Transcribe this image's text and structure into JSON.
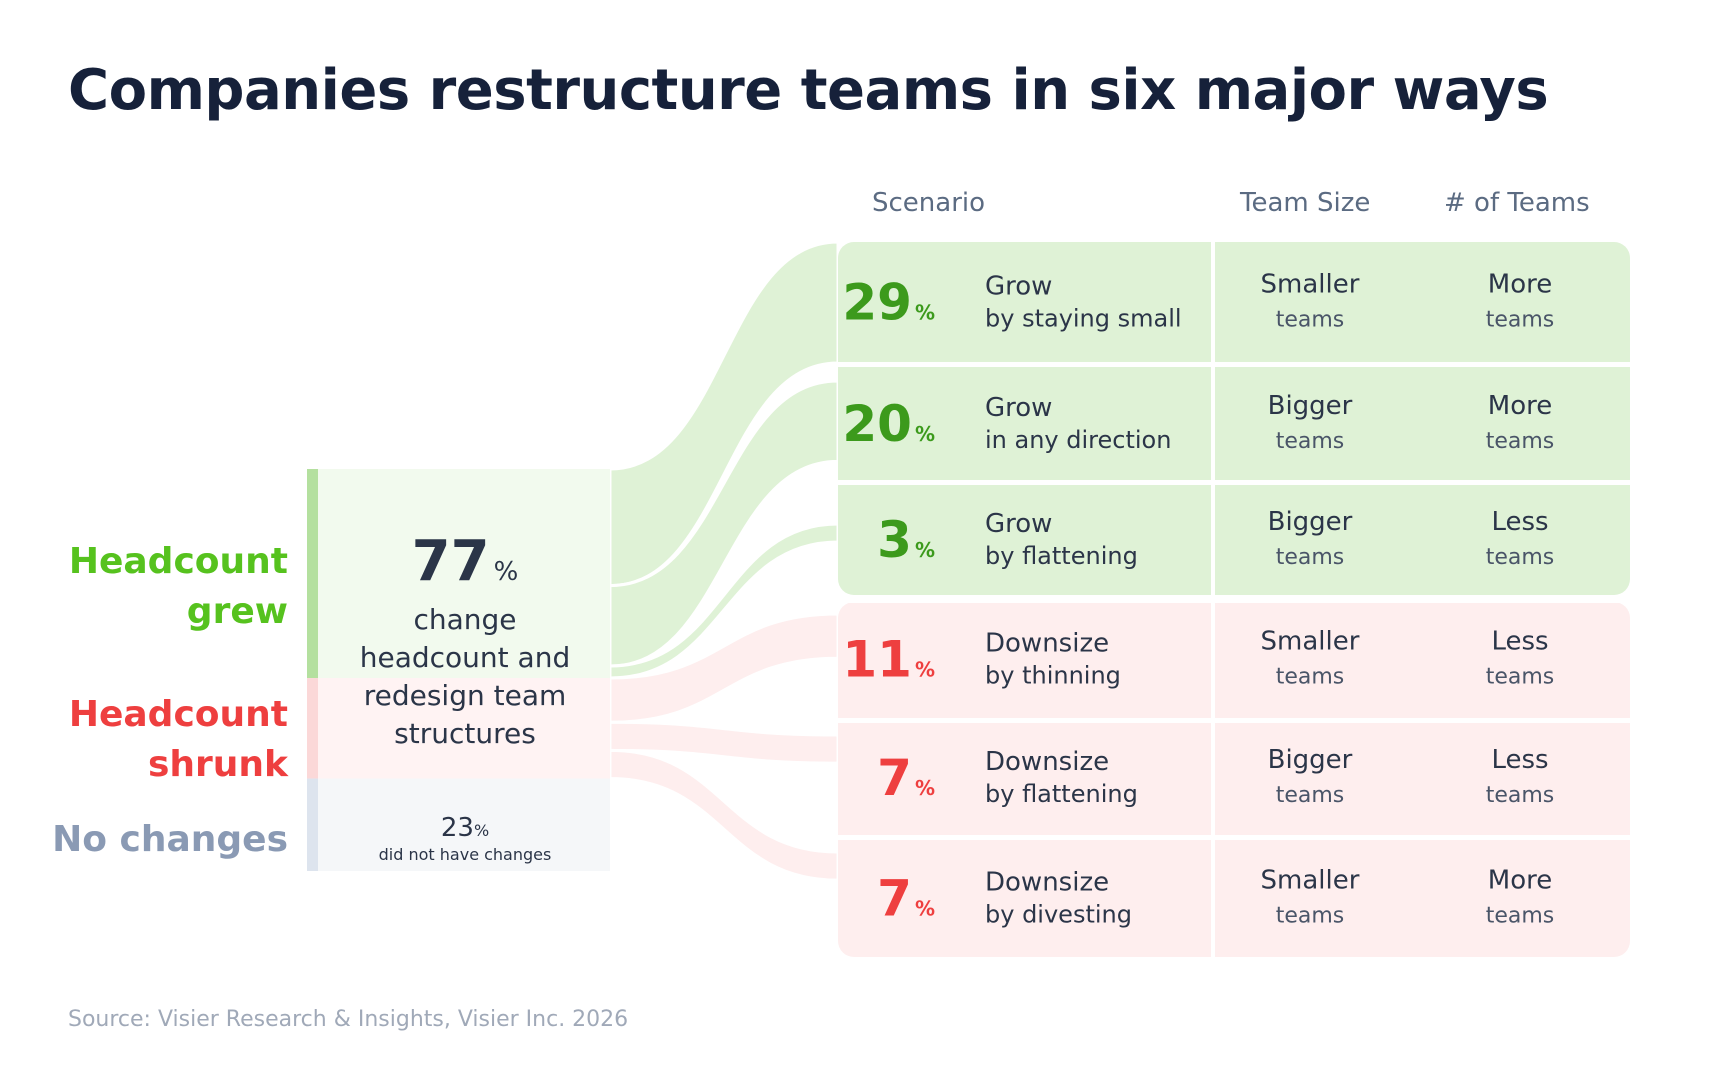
{
  "title": "Companies restructure teams in six major ways",
  "headers": {
    "scenario": "Scenario",
    "team_size": "Team Size",
    "num_teams": "# of Teams"
  },
  "left_labels": {
    "grew": "Headcount grew",
    "grew_lines": [
      "Headcount",
      "grew"
    ],
    "shrunk": "Headcount shrunk",
    "shrunk_lines": [
      "Headcount",
      "shrunk"
    ],
    "none": "No changes"
  },
  "center": {
    "value": "77",
    "pct": "%",
    "label": "change headcount and redesign team structures",
    "label_lines": [
      "change",
      "headcount and",
      "redesign team",
      "structures"
    ],
    "nochange_value": "23",
    "nochange_label": "did not have changes"
  },
  "colors": {
    "green_text": "#3c9a1c",
    "green_label": "#56c21e",
    "green_fill": "#dff2d6",
    "green_bar": "#b4e09f",
    "green_center": "#f2faee",
    "red_text": "#ee3f3f",
    "red_fill": "#feeeee",
    "red_bar": "#fbd8d8",
    "red_center": "#fff3f3",
    "gray_label": "#8a9ab4",
    "gray_fill": "#f5f7f9",
    "gray_bar": "#dde4ee",
    "title": "#16213a",
    "text": "#2b3548"
  },
  "chart_data": {
    "type": "sankey",
    "title": "Companies restructure teams in six major ways",
    "source_groups": [
      {
        "name": "Headcount grew",
        "value": 52
      },
      {
        "name": "Headcount shrunk",
        "value": 25
      },
      {
        "name": "No changes",
        "value": 23
      }
    ],
    "total_changed": 77,
    "no_change": 23,
    "scenarios": [
      {
        "group": "grew",
        "value": 29,
        "pct": "%",
        "name": "Grow",
        "detail": "by staying small",
        "team_size": "Smaller",
        "team_size_unit": "teams",
        "num_teams": "More",
        "num_teams_unit": "teams"
      },
      {
        "group": "grew",
        "value": 20,
        "pct": "%",
        "name": "Grow",
        "detail": "in any direction",
        "team_size": "Bigger",
        "team_size_unit": "teams",
        "num_teams": "More",
        "num_teams_unit": "teams"
      },
      {
        "group": "grew",
        "value": 3,
        "pct": "%",
        "name": "Grow",
        "detail": "by flattening",
        "team_size": "Bigger",
        "team_size_unit": "teams",
        "num_teams": "Less",
        "num_teams_unit": "teams"
      },
      {
        "group": "shrunk",
        "value": 11,
        "pct": "%",
        "name": "Downsize",
        "detail": "by thinning",
        "team_size": "Smaller",
        "team_size_unit": "teams",
        "num_teams": "Less",
        "num_teams_unit": "teams"
      },
      {
        "group": "shrunk",
        "value": 7,
        "pct": "%",
        "name": "Downsize",
        "detail": "by flattening",
        "team_size": "Bigger",
        "team_size_unit": "teams",
        "num_teams": "Less",
        "num_teams_unit": "teams"
      },
      {
        "group": "shrunk",
        "value": 7,
        "pct": "%",
        "name": "Downsize",
        "detail": "by divesting",
        "team_size": "Smaller",
        "team_size_unit": "teams",
        "num_teams": "More",
        "num_teams_unit": "teams"
      }
    ]
  },
  "source": "Source: Visier Research & Insights, Visier Inc. 2026"
}
